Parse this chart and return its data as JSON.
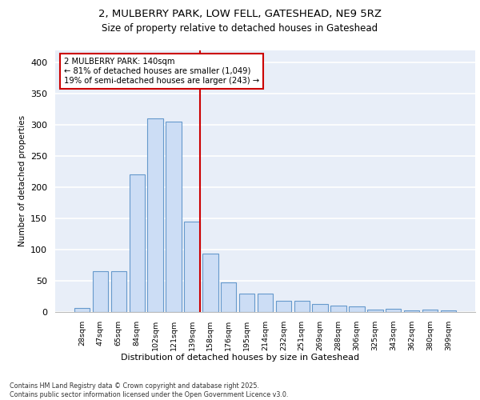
{
  "title_line1": "2, MULBERRY PARK, LOW FELL, GATESHEAD, NE9 5RZ",
  "title_line2": "Size of property relative to detached houses in Gateshead",
  "xlabel": "Distribution of detached houses by size in Gateshead",
  "ylabel": "Number of detached properties",
  "categories": [
    "28sqm",
    "47sqm",
    "65sqm",
    "84sqm",
    "102sqm",
    "121sqm",
    "139sqm",
    "158sqm",
    "176sqm",
    "195sqm",
    "214sqm",
    "232sqm",
    "251sqm",
    "269sqm",
    "288sqm",
    "306sqm",
    "325sqm",
    "343sqm",
    "362sqm",
    "380sqm",
    "399sqm"
  ],
  "values": [
    7,
    65,
    65,
    220,
    310,
    305,
    145,
    93,
    48,
    30,
    30,
    18,
    18,
    13,
    10,
    9,
    4,
    5,
    2,
    4,
    3
  ],
  "bar_color": "#ccddf5",
  "bar_edge_color": "#6699cc",
  "background_color": "#e8eef8",
  "grid_color": "#ffffff",
  "annotation_box_text": "2 MULBERRY PARK: 140sqm\n← 81% of detached houses are smaller (1,049)\n19% of semi-detached houses are larger (243) →",
  "annotation_box_color": "#ffffff",
  "annotation_box_edge_color": "#cc0000",
  "vline_x_index": 6,
  "vline_color": "#cc0000",
  "footer_text": "Contains HM Land Registry data © Crown copyright and database right 2025.\nContains public sector information licensed under the Open Government Licence v3.0.",
  "ylim": [
    0,
    420
  ],
  "yticks": [
    0,
    50,
    100,
    150,
    200,
    250,
    300,
    350,
    400
  ],
  "fig_bg": "#ffffff"
}
